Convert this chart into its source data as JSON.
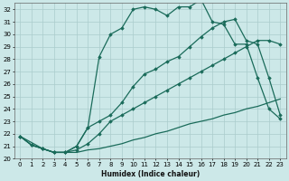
{
  "title": "",
  "xlabel": "Humidex (Indice chaleur)",
  "ylabel": "",
  "xlim": [
    -0.5,
    23.5
  ],
  "ylim": [
    20,
    32.5
  ],
  "yticks": [
    20,
    21,
    22,
    23,
    24,
    25,
    26,
    27,
    28,
    29,
    30,
    31,
    32
  ],
  "xticks": [
    0,
    1,
    2,
    3,
    4,
    5,
    6,
    7,
    8,
    9,
    10,
    11,
    12,
    13,
    14,
    15,
    16,
    17,
    18,
    19,
    20,
    21,
    22,
    23
  ],
  "bg_color": "#cce8e8",
  "grid_color": "#aacccc",
  "line_color": "#1a6b5a",
  "lines": [
    {
      "x": [
        0,
        1,
        2,
        3,
        4,
        5,
        6,
        7,
        8,
        9,
        10,
        11,
        12,
        13,
        14,
        15,
        16,
        17,
        18,
        19,
        20,
        21,
        22,
        23
      ],
      "y": [
        21.8,
        21.1,
        20.8,
        20.5,
        20.5,
        20.5,
        20.7,
        20.8,
        21.0,
        21.2,
        21.5,
        21.7,
        22.0,
        22.2,
        22.5,
        22.8,
        23.0,
        23.2,
        23.5,
        23.7,
        24.0,
        24.2,
        24.5,
        24.8
      ],
      "marker": "None",
      "linestyle": "-",
      "linewidth": 0.9
    },
    {
      "x": [
        0,
        1,
        2,
        3,
        4,
        5,
        6,
        7,
        8,
        9,
        10,
        11,
        12,
        13,
        14,
        15,
        16,
        17,
        18,
        19,
        20,
        21,
        22,
        23
      ],
      "y": [
        21.8,
        21.1,
        20.8,
        20.5,
        20.5,
        20.7,
        21.2,
        22.0,
        23.0,
        23.5,
        24.0,
        24.5,
        25.0,
        25.5,
        26.0,
        26.5,
        27.0,
        27.5,
        28.0,
        28.5,
        29.0,
        29.5,
        29.5,
        29.2
      ],
      "marker": "D",
      "linestyle": "-",
      "linewidth": 0.9
    },
    {
      "x": [
        0,
        1,
        2,
        3,
        4,
        5,
        6,
        7,
        8,
        9,
        10,
        11,
        12,
        13,
        14,
        15,
        16,
        17,
        18,
        19,
        20,
        21,
        22,
        23
      ],
      "y": [
        21.8,
        21.1,
        20.8,
        20.5,
        20.5,
        21.0,
        22.5,
        23.0,
        23.5,
        24.5,
        25.8,
        26.8,
        27.2,
        27.8,
        28.2,
        29.0,
        29.8,
        30.5,
        31.0,
        31.2,
        29.5,
        29.2,
        26.5,
        23.5
      ],
      "marker": "D",
      "linestyle": "-",
      "linewidth": 0.9
    },
    {
      "x": [
        0,
        2,
        3,
        4,
        5,
        6,
        7,
        8,
        9,
        10,
        11,
        12,
        13,
        14,
        15,
        16,
        17,
        18,
        19,
        20,
        21,
        22,
        23
      ],
      "y": [
        21.8,
        20.8,
        20.5,
        20.5,
        21.0,
        22.5,
        28.2,
        30.0,
        30.5,
        32.0,
        32.2,
        32.0,
        31.5,
        32.2,
        32.2,
        32.8,
        31.0,
        30.8,
        29.2,
        29.2,
        26.5,
        24.0,
        23.2
      ],
      "marker": "D",
      "linestyle": "-",
      "linewidth": 0.9
    }
  ]
}
